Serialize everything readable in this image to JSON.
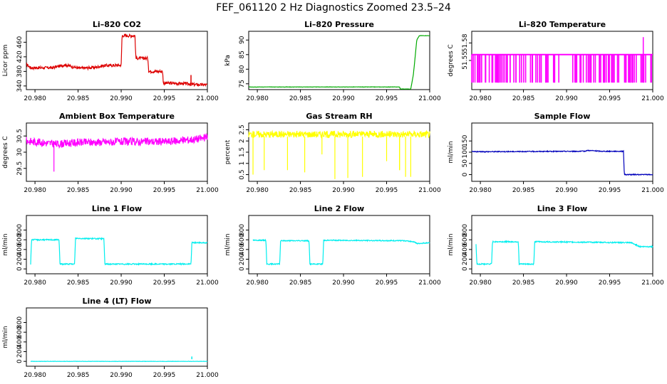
{
  "figure": {
    "title": "FEF_061120  2 Hz Diagnostics Zoomed 23.5–24"
  },
  "chart_data": [
    {
      "type": "line",
      "title": "Li–820 CO2",
      "ylabel": "Licor ppm",
      "color": "#dd0000",
      "xlim": [
        20.979,
        21.0
      ],
      "xticks": [
        "20.980",
        "20.985",
        "20.990",
        "20.995",
        "21.000"
      ],
      "ylim": [
        330,
        490
      ],
      "yticks": [
        340,
        380,
        420,
        460
      ],
      "series": [
        {
          "points": [
            [
              20.979,
              400
            ],
            [
              20.9795,
              390
            ],
            [
              20.982,
              390
            ],
            [
              20.9835,
              398
            ],
            [
              20.985,
              389
            ],
            [
              20.9855,
              389
            ],
            [
              20.987,
              391
            ],
            [
              20.988,
              396
            ],
            [
              20.99,
              397
            ],
            [
              20.9901,
              478
            ],
            [
              20.9916,
              478
            ],
            [
              20.9917,
              416
            ],
            [
              20.9931,
              416
            ],
            [
              20.9932,
              380
            ],
            [
              20.9948,
              380
            ],
            [
              20.9949,
              348
            ],
            [
              20.998,
              346
            ],
            [
              20.9982,
              344
            ],
            [
              21.0,
              343
            ]
          ],
          "noise": 4
        }
      ],
      "vlines": [
        [
          20.9981,
          340,
          370
        ]
      ]
    },
    {
      "type": "line",
      "title": "Li–820 Pressure",
      "ylabel": "kPa",
      "color": "#00aa00",
      "xlim": [
        20.979,
        21.0
      ],
      "xticks": [
        "20.980",
        "20.985",
        "20.990",
        "20.995",
        "21.000"
      ],
      "ylim": [
        73,
        93
      ],
      "yticks": [
        75,
        80,
        85,
        90
      ],
      "series": [
        {
          "points": [
            [
              20.979,
              73.9
            ],
            [
              20.9965,
              73.9
            ],
            [
              20.9966,
              73.2
            ],
            [
              20.9978,
              73.2
            ],
            [
              20.9981,
              78
            ],
            [
              20.9985,
              90
            ],
            [
              20.9988,
              91.5
            ],
            [
              21.0,
              91.5
            ]
          ],
          "noise": 0.05
        }
      ]
    },
    {
      "type": "line",
      "title": "Li–820 Temperature",
      "ylabel": "degrees C",
      "color": "#ff00ff",
      "xlim": [
        20.979,
        21.0
      ],
      "xticks": [
        "20.980",
        "20.985",
        "20.990",
        "20.995",
        "21.000"
      ],
      "ylim": [
        51.5,
        51.6
      ],
      "yticks": [
        51.55,
        51.58
      ],
      "series": [
        {
          "points": [
            [
              20.979,
              51.56
            ],
            [
              21.0,
              51.56
            ]
          ],
          "noise": 0
        }
      ],
      "band": [
        51.512,
        51.56
      ],
      "spikes": 1,
      "peak": [
        20.9989,
        51.59
      ]
    },
    {
      "type": "line",
      "title": "Ambient Box Temperature",
      "ylabel": "degrees C",
      "color": "#ff00ff",
      "xlim": [
        20.979,
        21.0
      ],
      "xticks": [
        "20.980",
        "20.985",
        "20.990",
        "20.995",
        "21.000"
      ],
      "ylim": [
        29.1,
        30.9
      ],
      "yticks": [
        29.5,
        30.0,
        30.5
      ],
      "series": [
        {
          "points": [
            [
              20.979,
              30.35
            ],
            [
              20.9825,
              30.25
            ],
            [
              20.985,
              30.3
            ],
            [
              20.99,
              30.32
            ],
            [
              20.9955,
              30.33
            ],
            [
              20.9985,
              30.4
            ],
            [
              21.0,
              30.45
            ]
          ],
          "noise": 0.12
        }
      ],
      "dip": [
        20.9822,
        29.4
      ]
    },
    {
      "type": "line",
      "title": "Gas Stream RH",
      "ylabel": "percent",
      "color": "#ffff00",
      "xlim": [
        20.979,
        21.0
      ],
      "xticks": [
        "20.980",
        "20.985",
        "20.990",
        "20.995",
        "21.000"
      ],
      "ylim": [
        0.2,
        2.8
      ],
      "yticks": [
        0.5,
        1.0,
        1.5,
        2.0,
        2.5
      ],
      "series": [
        {
          "points": [
            [
              20.979,
              2.3
            ],
            [
              21.0,
              2.3
            ]
          ],
          "noise": 0.15
        }
      ],
      "dips_down": [
        [
          20.9795,
          0.5
        ],
        [
          20.9808,
          0.7
        ],
        [
          20.9835,
          0.7
        ],
        [
          20.9855,
          0.6
        ],
        [
          20.9875,
          1.4
        ],
        [
          20.989,
          0.3
        ],
        [
          20.9905,
          0.35
        ],
        [
          20.9922,
          0.4
        ],
        [
          20.995,
          1.1
        ],
        [
          20.9965,
          0.7
        ],
        [
          20.9972,
          0.4
        ],
        [
          20.9978,
          0.4
        ],
        [
          20.9965,
          0.7
        ]
      ]
    },
    {
      "type": "line",
      "title": "Sample Flow",
      "ylabel": "ml/min",
      "color": "#0000bb",
      "xlim": [
        20.979,
        21.0
      ],
      "xticks": [
        "20.980",
        "20.985",
        "20.990",
        "20.995",
        "21.000"
      ],
      "ylim": [
        -30,
        230
      ],
      "yticks": [
        0,
        50,
        100,
        150
      ],
      "series": [
        {
          "points": [
            [
              20.979,
              102
            ],
            [
              20.992,
              104
            ],
            [
              20.9925,
              108
            ],
            [
              20.994,
              104
            ],
            [
              20.9966,
              104
            ],
            [
              20.9967,
              0
            ],
            [
              21.0,
              0
            ]
          ],
          "noise": 2
        }
      ]
    },
    {
      "type": "line",
      "title": "Line 1 Flow",
      "ylabel": "ml/min",
      "color": "#00eeee",
      "xlim": [
        20.979,
        21.0
      ],
      "xticks": [
        "20.980",
        "20.985",
        "20.990",
        "20.995",
        "21.000"
      ],
      "ylim": [
        -100,
        1100
      ],
      "yticks": [
        0,
        200,
        400,
        600,
        800
      ],
      "series": [
        {
          "points": [
            [
              20.9795,
              100
            ],
            [
              20.9796,
              600
            ],
            [
              20.9828,
              600
            ],
            [
              20.9829,
              100
            ],
            [
              20.9846,
              100
            ],
            [
              20.9847,
              630
            ],
            [
              20.988,
              620
            ],
            [
              20.9881,
              100
            ],
            [
              20.9981,
              100
            ],
            [
              20.9982,
              540
            ],
            [
              21.0,
              540
            ]
          ],
          "noise": 12
        }
      ]
    },
    {
      "type": "line",
      "title": "Line 2 Flow",
      "ylabel": "ml/min",
      "color": "#00eeee",
      "xlim": [
        20.979,
        21.0
      ],
      "xticks": [
        "20.980",
        "20.985",
        "20.990",
        "20.995",
        "21.000"
      ],
      "ylim": [
        -100,
        1100
      ],
      "yticks": [
        0,
        200,
        400,
        600,
        800
      ],
      "series": [
        {
          "points": [
            [
              20.9795,
              590
            ],
            [
              20.981,
              590
            ],
            [
              20.9811,
              100
            ],
            [
              20.9826,
              100
            ],
            [
              20.9827,
              580
            ],
            [
              20.986,
              580
            ],
            [
              20.9861,
              100
            ],
            [
              20.9876,
              100
            ],
            [
              20.9877,
              590
            ],
            [
              20.997,
              580
            ],
            [
              20.9982,
              560
            ],
            [
              20.9985,
              520
            ],
            [
              21.0,
              540
            ]
          ],
          "noise": 10
        }
      ]
    },
    {
      "type": "line",
      "title": "Line 3 Flow",
      "ylabel": "ml/min",
      "color": "#00eeee",
      "xlim": [
        20.979,
        21.0
      ],
      "xticks": [
        "20.980",
        "20.985",
        "20.990",
        "20.995",
        "21.000"
      ],
      "ylim": [
        -100,
        1100
      ],
      "yticks": [
        0,
        200,
        400,
        600,
        800
      ],
      "series": [
        {
          "points": [
            [
              20.9795,
              500
            ],
            [
              20.9796,
              100
            ],
            [
              20.9813,
              100
            ],
            [
              20.9814,
              560
            ],
            [
              20.9844,
              560
            ],
            [
              20.9845,
              100
            ],
            [
              20.9862,
              100
            ],
            [
              20.9863,
              560
            ],
            [
              20.9975,
              540
            ],
            [
              20.9985,
              460
            ],
            [
              21.0,
              460
            ]
          ],
          "noise": 12
        }
      ]
    },
    {
      "type": "line",
      "title": "Line 4 (LT) Flow",
      "ylabel": "ml/min",
      "color": "#00eeee",
      "xlim": [
        20.979,
        21.0
      ],
      "xticks": [
        "20.980",
        "20.985",
        "20.990",
        "20.995",
        "21.000"
      ],
      "ylim": [
        -100,
        1100
      ],
      "yticks": [
        0,
        200,
        400,
        600,
        800
      ],
      "series": [
        {
          "points": [
            [
              20.9795,
              0
            ],
            [
              21.0,
              0
            ]
          ],
          "noise": 3
        }
      ],
      "peak": [
        20.9982,
        100
      ]
    }
  ]
}
